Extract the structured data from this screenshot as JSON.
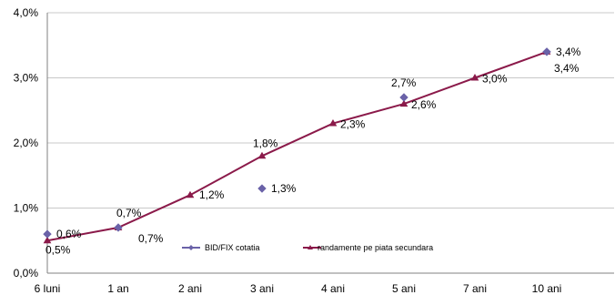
{
  "chart_data": {
    "type": "line",
    "categories": [
      "6 luni",
      "1 an",
      "2 ani",
      "3 ani",
      "4 ani",
      "5 ani",
      "7 ani",
      "10 ani"
    ],
    "ylim": [
      0,
      4.0
    ],
    "yticks": [
      0,
      1.0,
      2.0,
      3.0,
      4.0
    ],
    "ytick_labels": [
      "0,0%",
      "1,0%",
      "2,0%",
      "3,0%",
      "4,0%"
    ],
    "grid": true,
    "legend_position": "bottom-center",
    "series": [
      {
        "name": "BID/FIX cotatia",
        "color": "#6a62a8",
        "marker": "diamond",
        "values": [
          0.6,
          0.7,
          null,
          1.3,
          null,
          2.7,
          null,
          3.4
        ],
        "labels": [
          "0,6%",
          "0,7%",
          "",
          "1,3%",
          "",
          "2,7%",
          "",
          "3,4%"
        ]
      },
      {
        "name": "randamente pe piata secundara",
        "color": "#8b1a4a",
        "marker": "triangle",
        "values": [
          0.5,
          0.7,
          1.2,
          1.8,
          2.3,
          2.6,
          3.0,
          3.4
        ],
        "labels": [
          "0,5%",
          "0,7%",
          "1,2%",
          "1,8%",
          "2,3%",
          "2,6%",
          "3,0%",
          "3,4%"
        ]
      }
    ]
  }
}
